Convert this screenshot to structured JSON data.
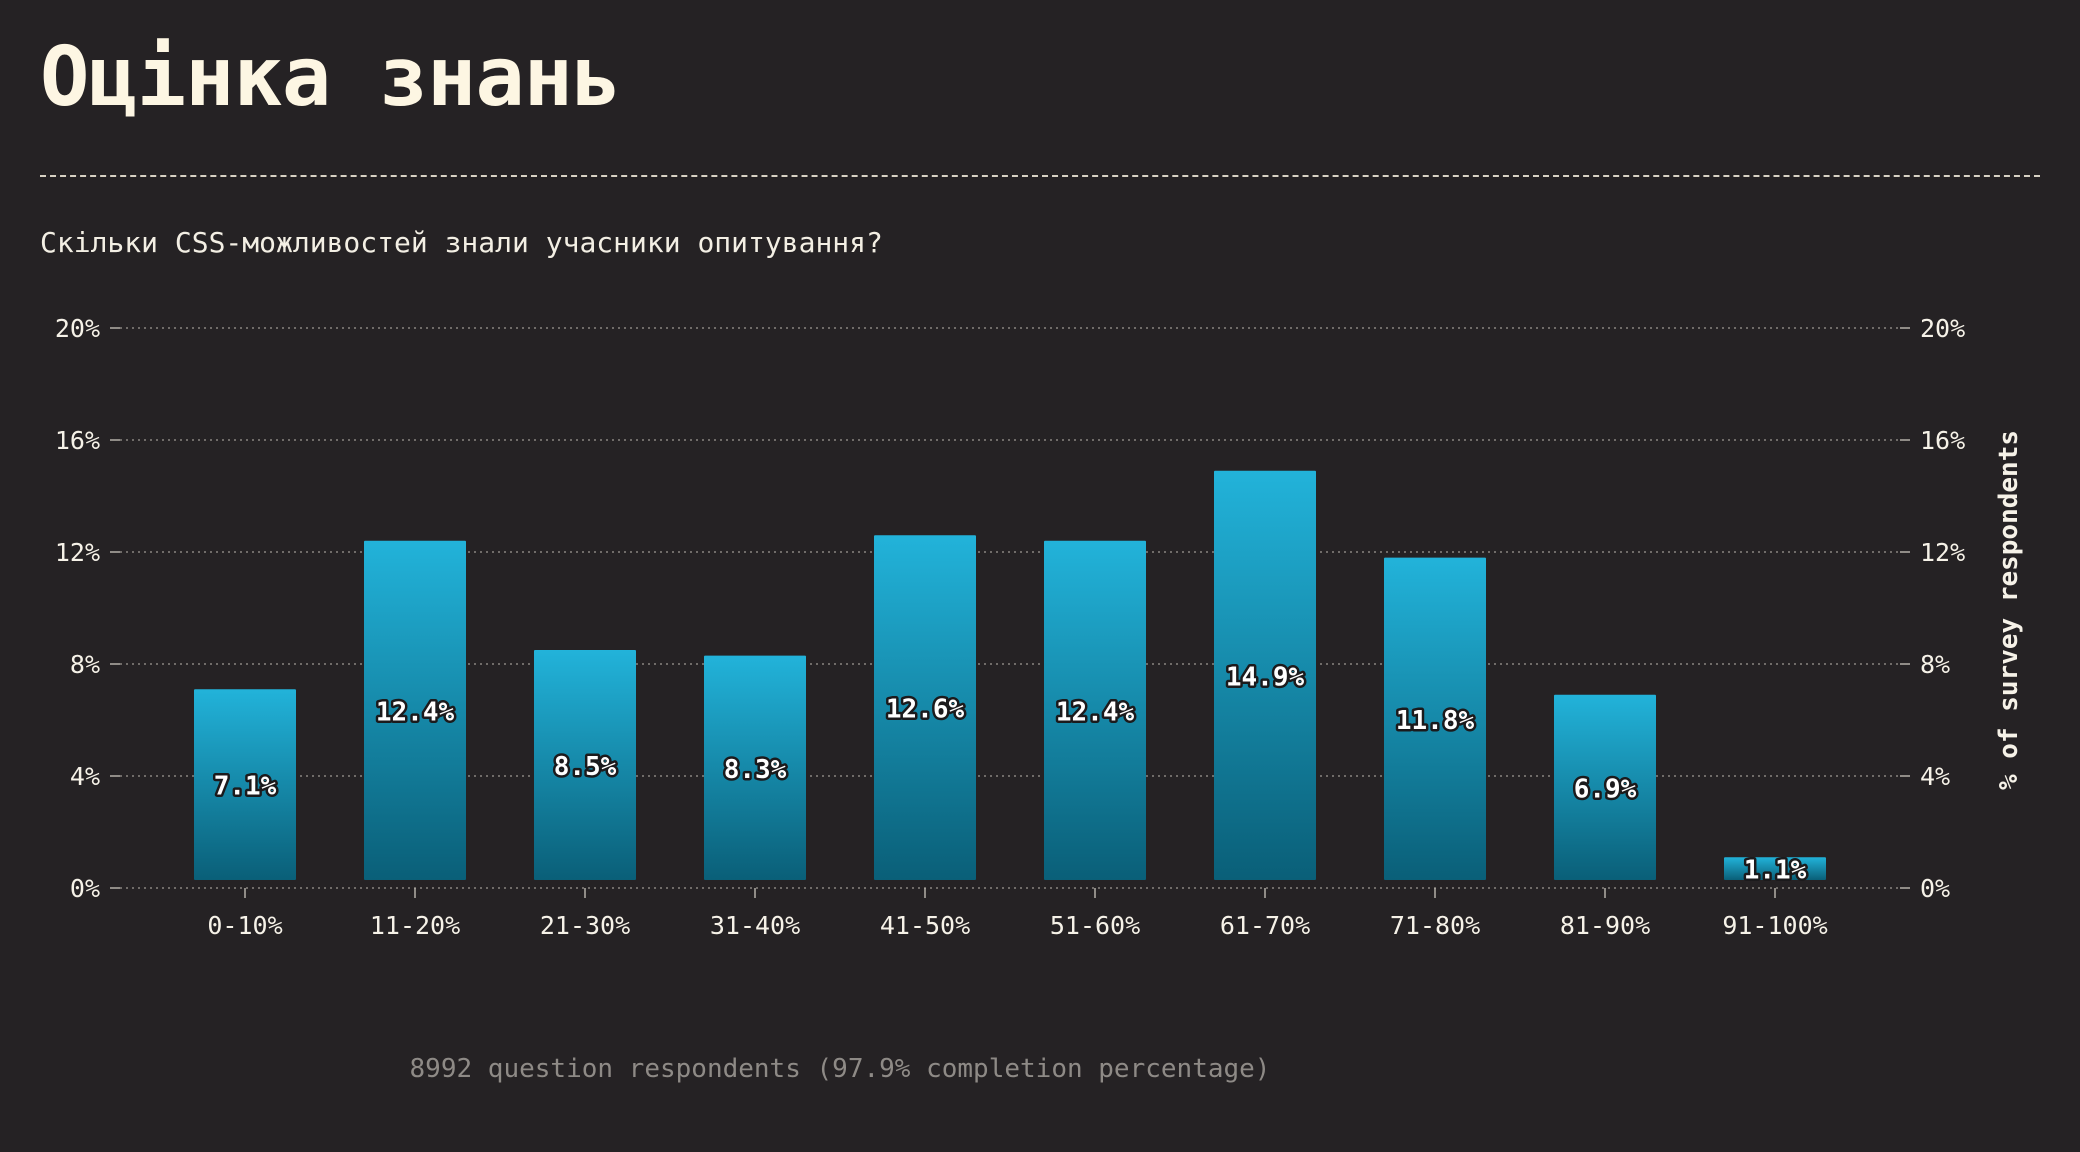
{
  "page": {
    "title": "Оцінка знань",
    "question": "Скільки CSS-можливостей знали учасники опитування?",
    "footnote": "8992 question respondents (97.9% completion percentage)"
  },
  "colors": {
    "background": "#252224",
    "bar_top": "#22b3da",
    "bar_bottom": "#0a5f78",
    "text": "#f6f2e8",
    "muted": "#8e8a86"
  },
  "chart_data": {
    "type": "bar",
    "categories": [
      "0-10%",
      "11-20%",
      "21-30%",
      "31-40%",
      "41-50%",
      "51-60%",
      "61-70%",
      "71-80%",
      "81-90%",
      "91-100%"
    ],
    "values": [
      7.1,
      12.4,
      8.5,
      8.3,
      12.6,
      12.4,
      14.9,
      11.8,
      6.9,
      1.1
    ],
    "value_labels": [
      "7.1%",
      "12.4%",
      "8.5%",
      "8.3%",
      "12.6%",
      "12.4%",
      "14.9%",
      "11.8%",
      "6.9%",
      "1.1%"
    ],
    "ylim": [
      0,
      20
    ],
    "yticks": [
      0,
      4,
      8,
      12,
      16,
      20
    ],
    "ytick_labels": [
      "0%",
      "4%",
      "8%",
      "12%",
      "16%",
      "20%"
    ],
    "ylabel_right": "% of survey respondents",
    "xlabel": "",
    "grid": true,
    "right_axis": true
  }
}
